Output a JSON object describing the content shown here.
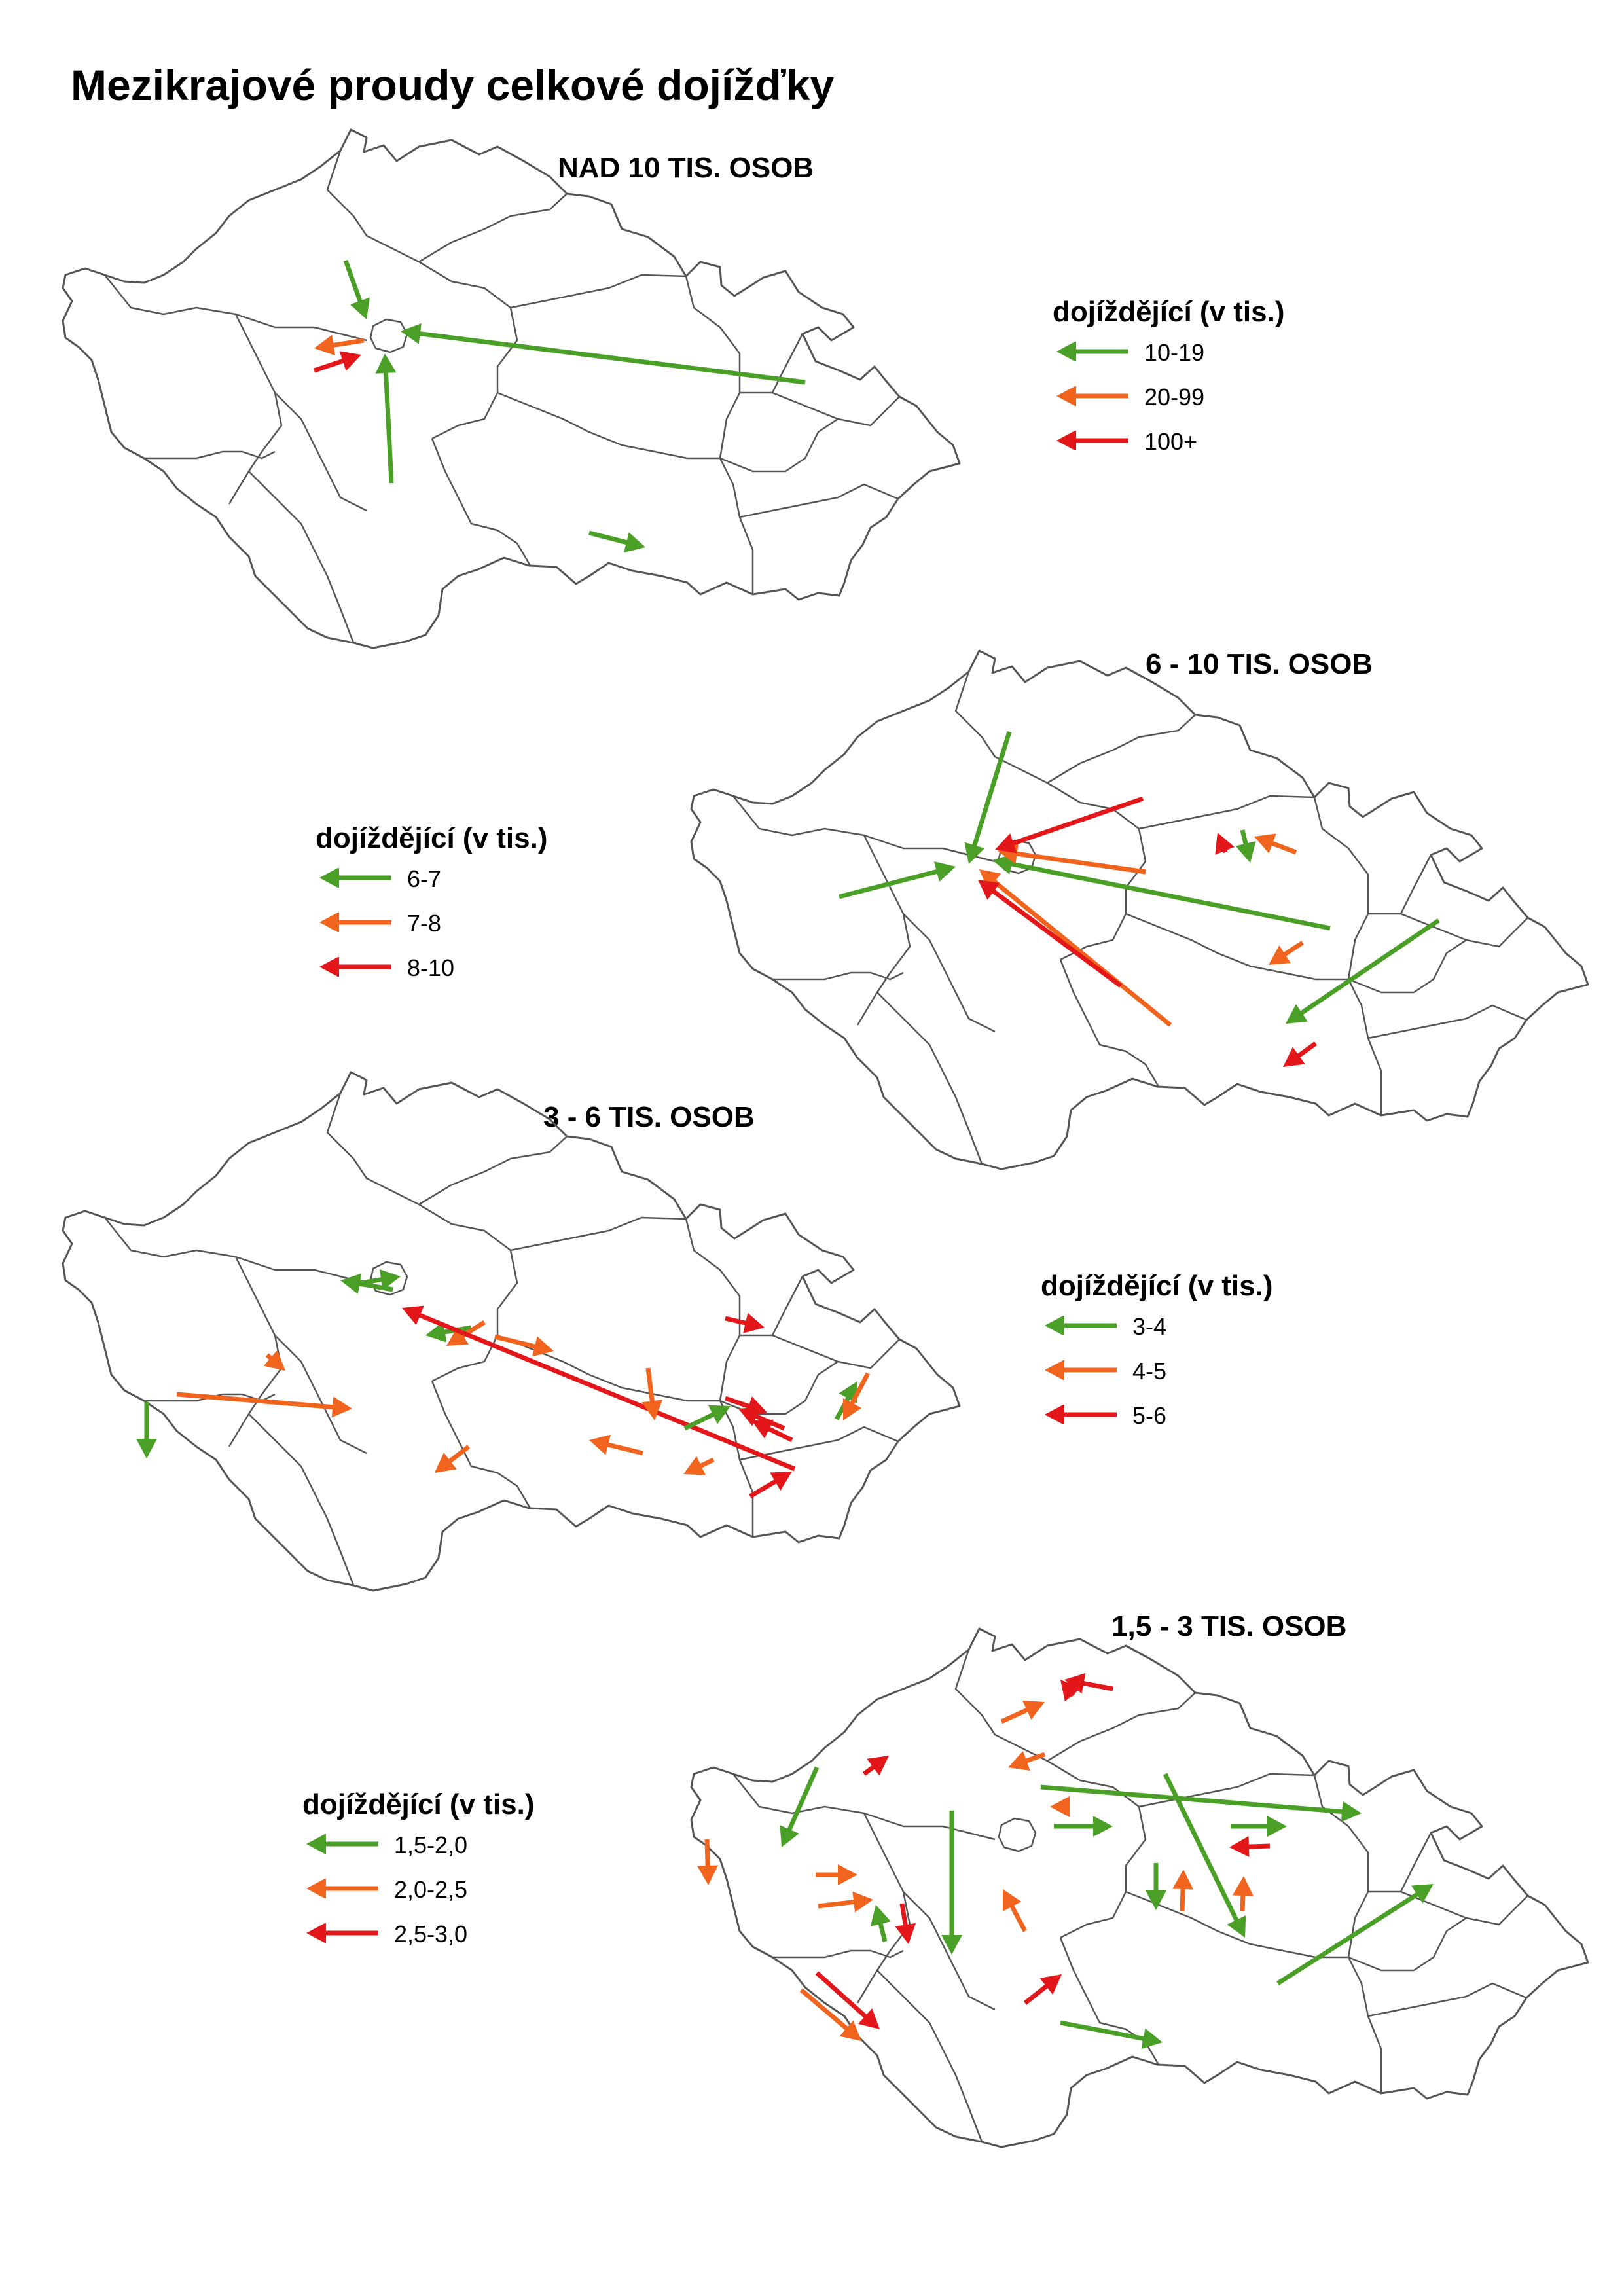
{
  "title": "Mezikrajové proudy celkové dojížďky",
  "colors": {
    "green": "#4a9f26",
    "orange": "#f0641e",
    "red": "#e3171a",
    "border": "#555555"
  },
  "panels": [
    {
      "title": "NAD 10 TIS. OSOB",
      "legend": {
        "title": "dojíždějící  (v tis.)",
        "items": [
          {
            "label": "10-19",
            "color": "green"
          },
          {
            "label": "20-99",
            "color": "orange"
          },
          {
            "label": "100+",
            "color": "red"
          }
        ]
      }
    },
    {
      "title": "6 - 10 TIS. OSOB",
      "legend": {
        "title": "dojíždějící  (v tis.)",
        "items": [
          {
            "label": "6-7",
            "color": "green"
          },
          {
            "label": "7-8",
            "color": "orange"
          },
          {
            "label": "8-10",
            "color": "red"
          }
        ]
      }
    },
    {
      "title": "3 - 6 TIS. OSOB",
      "legend": {
        "title": "dojíždějící  (v tis.)",
        "items": [
          {
            "label": "3-4",
            "color": "green"
          },
          {
            "label": "4-5",
            "color": "orange"
          },
          {
            "label": "5-6",
            "color": "red"
          }
        ]
      }
    },
    {
      "title": "1,5 - 3 TIS. OSOB",
      "legend": {
        "title": "dojíždějící  (v tis.)",
        "items": [
          {
            "label": "1,5-2,0",
            "color": "green"
          },
          {
            "label": "2,0-2,5",
            "color": "orange"
          },
          {
            "label": "2,5-3,0",
            "color": "red"
          }
        ]
      }
    }
  ]
}
